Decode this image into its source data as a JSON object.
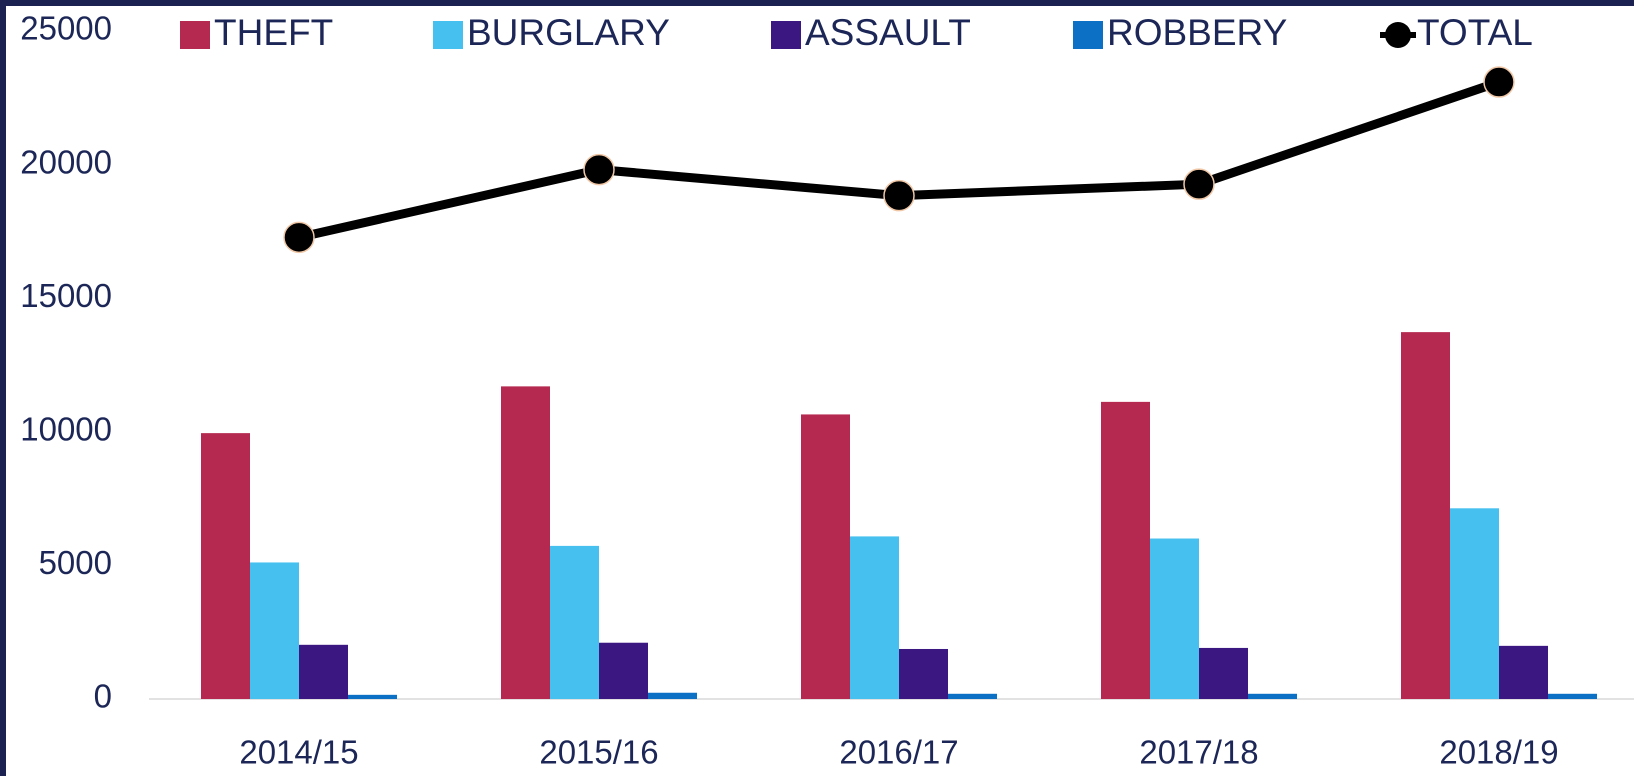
{
  "chart_data": {
    "type": "bar",
    "categories": [
      "2014/15",
      "2015/16",
      "2016/17",
      "2017/18",
      "2018/19"
    ],
    "series": [
      {
        "name": "THEFT",
        "color": "#b5284f",
        "values": [
          9950,
          11700,
          10650,
          11120,
          13730
        ]
      },
      {
        "name": "BURGLARY",
        "color": "#45c0ef",
        "values": [
          5110,
          5730,
          6085,
          6006,
          7137
        ]
      },
      {
        "name": "ASSAULT",
        "color": "#3b1782",
        "values": [
          2028,
          2106,
          1872,
          1911,
          1989
        ]
      },
      {
        "name": "ROBBERY",
        "color": "#0c71c4",
        "values": [
          156,
          234,
          195,
          195,
          195
        ]
      },
      {
        "name": "TOTAL",
        "color": "#000000",
        "type": "line",
        "values": [
          17278,
          19813,
          18838,
          19267,
          23089
        ]
      }
    ],
    "ylim": [
      0,
      25000
    ],
    "yticks": [
      0,
      5000,
      10000,
      15000,
      20000,
      25000
    ],
    "grid": false
  }
}
